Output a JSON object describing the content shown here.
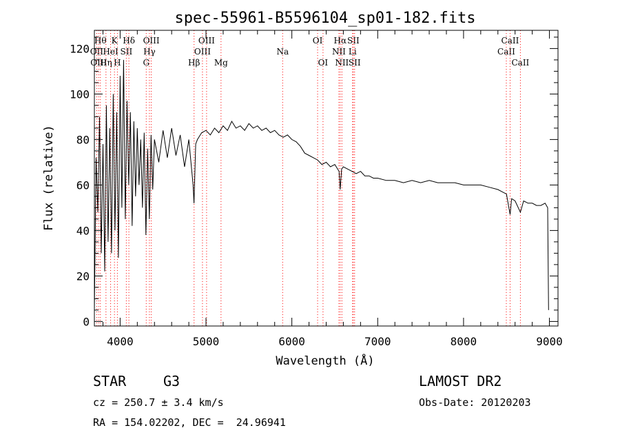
{
  "chart_data": {
    "type": "line",
    "title": "spec-55961-B5596104_sp01-182.fits",
    "xlabel": "Wavelength (Å)",
    "ylabel": "Flux (relative)",
    "xlim": [
      3700,
      9100
    ],
    "ylim": [
      -2,
      128
    ],
    "xticks": [
      4000,
      5000,
      6000,
      7000,
      8000,
      9000
    ],
    "yticks": [
      0,
      20,
      40,
      60,
      80,
      100,
      120
    ],
    "grid": false,
    "line_color": "#000000",
    "marker_color": "#ff0000",
    "series": [
      {
        "x": [
          3700,
          3720,
          3740,
          3760,
          3780,
          3800,
          3820,
          3840,
          3860,
          3880,
          3900,
          3920,
          3940,
          3960,
          3980,
          4000,
          4020,
          4040,
          4060,
          4080,
          4100,
          4120,
          4140,
          4160,
          4180,
          4200,
          4220,
          4240,
          4260,
          4280,
          4300,
          4320,
          4340,
          4360,
          4380,
          4400,
          4450,
          4500,
          4550,
          4600,
          4650,
          4700,
          4750,
          4800,
          4850,
          4860,
          4880,
          4900,
          4950,
          5000,
          5050,
          5100,
          5150,
          5200,
          5250,
          5300,
          5350,
          5400,
          5450,
          5500,
          5550,
          5600,
          5650,
          5700,
          5750,
          5800,
          5850,
          5900,
          5950,
          6000,
          6050,
          6100,
          6150,
          6200,
          6250,
          6300,
          6350,
          6400,
          6450,
          6500,
          6550,
          6563,
          6580,
          6600,
          6650,
          6700,
          6750,
          6800,
          6850,
          6900,
          6950,
          7000,
          7100,
          7200,
          7300,
          7400,
          7500,
          7600,
          7700,
          7800,
          7900,
          8000,
          8100,
          8200,
          8300,
          8400,
          8450,
          8500,
          8542,
          8560,
          8600,
          8662,
          8700,
          8750,
          8800,
          8850,
          8900,
          8950,
          8980,
          8990
        ],
        "y": [
          5,
          72,
          48,
          90,
          30,
          78,
          22,
          95,
          35,
          85,
          30,
          100,
          40,
          92,
          28,
          108,
          50,
          115,
          45,
          97,
          60,
          92,
          42,
          88,
          55,
          85,
          60,
          80,
          50,
          83,
          38,
          76,
          45,
          82,
          58,
          80,
          70,
          84,
          72,
          85,
          73,
          82,
          68,
          80,
          60,
          52,
          78,
          80,
          83,
          84,
          82,
          85,
          83,
          86,
          84,
          88,
          85,
          86,
          84,
          87,
          85,
          86,
          84,
          85,
          83,
          84,
          82,
          81,
          82,
          80,
          79,
          77,
          74,
          73,
          72,
          71,
          69,
          70,
          68,
          69,
          66,
          58,
          67,
          68,
          67,
          66,
          65,
          66,
          64,
          64,
          63,
          63,
          62,
          62,
          61,
          62,
          61,
          62,
          61,
          61,
          61,
          60,
          60,
          60,
          59,
          58,
          57,
          56,
          47,
          54,
          53,
          48,
          53,
          52,
          52,
          51,
          51,
          52,
          50,
          5
        ]
      }
    ],
    "lines_markers": [
      {
        "x": 3727,
        "label": "OII",
        "row": 1
      },
      {
        "x": 3750,
        "label": "OIII",
        "row": 2
      },
      {
        "x": 3770,
        "label": "Hθ",
        "row": 0
      },
      {
        "x": 3835,
        "label": "Hη",
        "row": 2
      },
      {
        "x": 3889,
        "label": "HeI",
        "row": 1
      },
      {
        "x": 3934,
        "label": "K",
        "row": 0
      },
      {
        "x": 3968,
        "label": "H",
        "row": 2
      },
      {
        "x": 4072,
        "label": "SII",
        "row": 1
      },
      {
        "x": 4102,
        "label": "Hδ",
        "row": 0
      },
      {
        "x": 4304,
        "label": "G",
        "row": 2
      },
      {
        "x": 4341,
        "label": "Hγ",
        "row": 1
      },
      {
        "x": 4363,
        "label": "OIII",
        "row": 0
      },
      {
        "x": 4861,
        "label": "Hβ",
        "row": 2
      },
      {
        "x": 4959,
        "label": "OIII",
        "row": 1
      },
      {
        "x": 5007,
        "label": "OIII",
        "row": 0
      },
      {
        "x": 5175,
        "label": "Mg",
        "row": 2
      },
      {
        "x": 5893,
        "label": "Na",
        "row": 1
      },
      {
        "x": 6300,
        "label": "OI",
        "row": 0
      },
      {
        "x": 6363,
        "label": "OI",
        "row": 2
      },
      {
        "x": 6548,
        "label": "NII",
        "row": 1
      },
      {
        "x": 6563,
        "label": "Hα",
        "row": 0
      },
      {
        "x": 6583,
        "label": "NII",
        "row": 2
      },
      {
        "x": 6707,
        "label": "Li",
        "row": 1
      },
      {
        "x": 6716,
        "label": "SII",
        "row": 0
      },
      {
        "x": 6731,
        "label": "SII",
        "row": 2
      },
      {
        "x": 8498,
        "label": "CaII",
        "row": 1
      },
      {
        "x": 8542,
        "label": "CaII",
        "row": 0
      },
      {
        "x": 8662,
        "label": "CaII",
        "row": 2
      }
    ]
  },
  "footer": {
    "object_class": "STAR",
    "subclass": "G3",
    "survey": "LAMOST DR2",
    "redshift_line": "cz = 250.7 ± 3.4 km/s",
    "obs_date_line": "Obs-Date: 20120203",
    "coords_line": "RA = 154.02202, DEC =  24.96941"
  }
}
